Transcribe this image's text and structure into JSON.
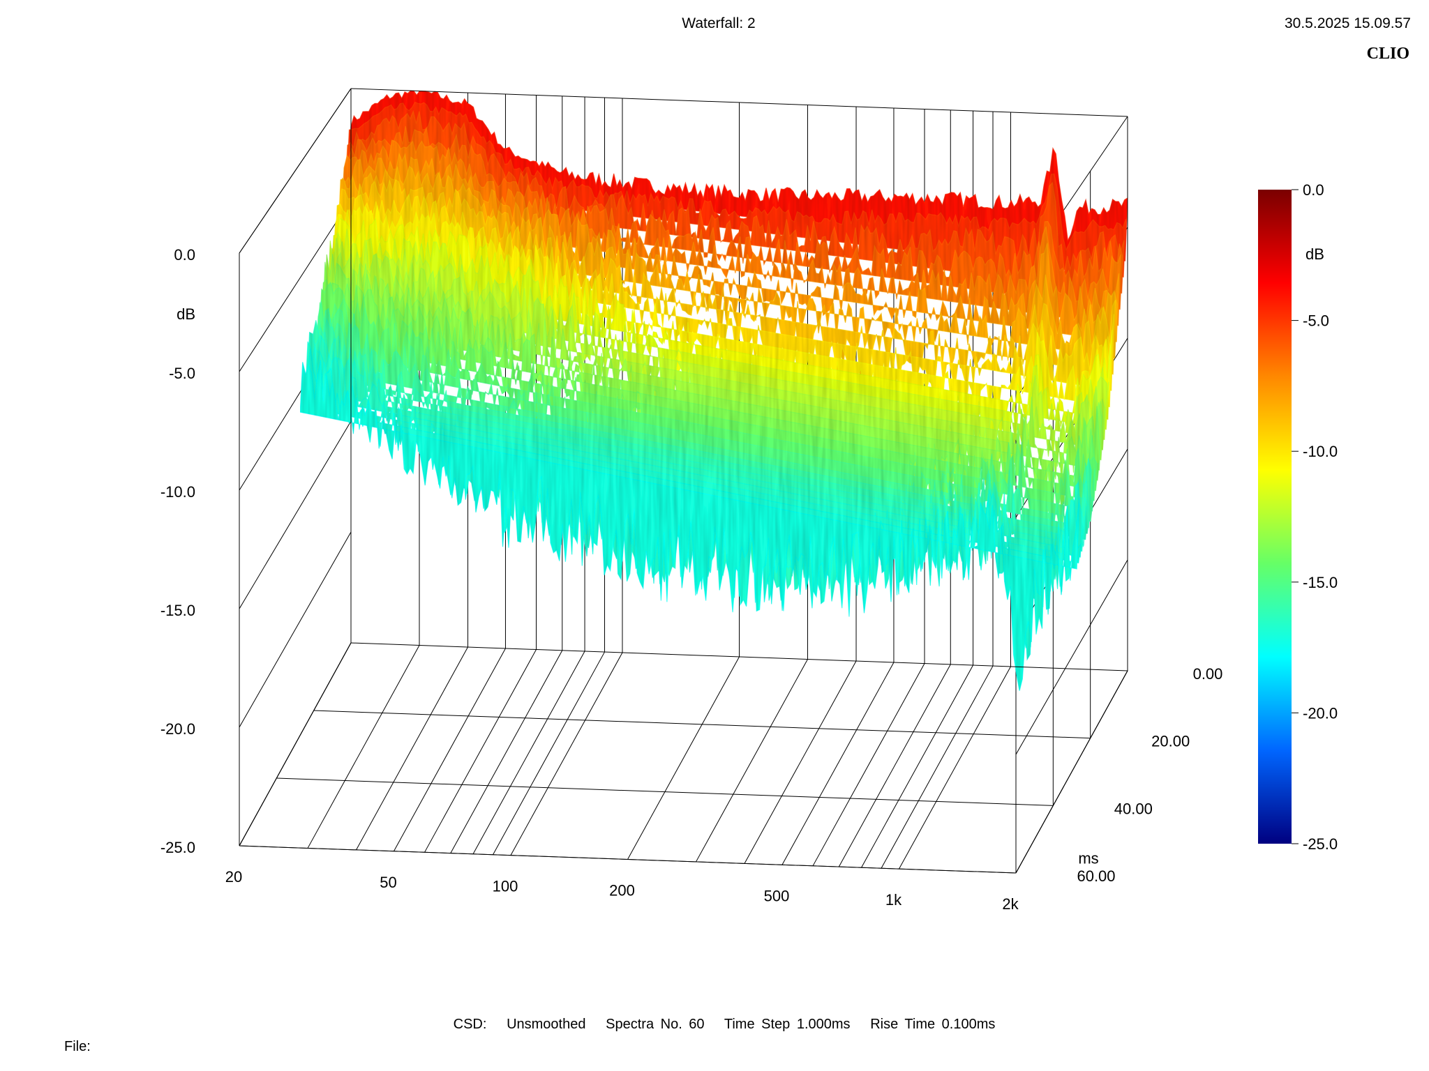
{
  "header": {
    "title": "Waterfall: 2",
    "datetime": "30.5.2025 15.09.57",
    "brand": "CLIO"
  },
  "footer": {
    "info": "CSD:   Unsmoothed   Spectra No. 60   Time Step 1.000ms   Rise Time 0.100ms",
    "file_label": "File:"
  },
  "chart_data": {
    "type": "waterfall",
    "title": "Waterfall: 2",
    "xlabel": "",
    "ylabel": "dB",
    "zlabel": "ms",
    "x_scale": "log",
    "xlim": [
      20,
      2000
    ],
    "x_ticks": [
      20,
      50,
      100,
      200,
      500,
      1000,
      2000
    ],
    "x_tick_labels": [
      "20",
      "50",
      "100",
      "200",
      "500",
      "1k",
      "2k"
    ],
    "ylim": [
      -25,
      0
    ],
    "y_ticks": [
      0,
      -5,
      -10,
      -15,
      -20,
      -25
    ],
    "y_tick_labels": [
      "0.0",
      "-5.0",
      "-10.0",
      "-15.0",
      "-20.0",
      "-25.0"
    ],
    "time_ticks": [
      0,
      20,
      40,
      60
    ],
    "time_tick_labels": [
      "0.00",
      "20.00",
      "40.00",
      "60.00"
    ],
    "time_step_ms": 1.0,
    "spectra_count": 60,
    "grid": true,
    "colorbar": {
      "label": "dB",
      "ticks": [
        0,
        -5,
        -10,
        -15,
        -20,
        -25
      ],
      "tick_labels": [
        "0.0",
        "-5.0",
        "-10.0",
        "-15.0",
        "-20.0",
        "-25.0"
      ],
      "colors": [
        "#7a0000",
        "#ff0000",
        "#ff8800",
        "#ffff00",
        "#66ff66",
        "#00ffff",
        "#0066ff",
        "#000080"
      ]
    },
    "series": [
      {
        "name": "",
        "time_ms": 0,
        "x": [
          20,
          25,
          30,
          40,
          50,
          70,
          100,
          150,
          200,
          300,
          500,
          700,
          1000,
          1200,
          1300,
          1400,
          1500,
          2000
        ],
        "y": [
          -1.5,
          -0.3,
          0.0,
          -0.5,
          -2.5,
          -3.5,
          -3.8,
          -4.0,
          -4.1,
          -4.1,
          -4.0,
          -4.0,
          -4.1,
          -3.9,
          -1.5,
          -5.5,
          -4.2,
          -4.0
        ]
      },
      {
        "name": "",
        "time_ms": 10,
        "x": [
          20,
          25,
          30,
          40,
          50,
          70,
          100,
          150,
          200,
          300,
          500,
          700,
          1000,
          1200,
          1300,
          1400,
          1500,
          2000
        ],
        "y": [
          -5.5,
          -5.6,
          -5.7,
          -6.0,
          -6.5,
          -7.5,
          -9.0,
          -10.5,
          -11.5,
          -12.5,
          -13.0,
          -13.2,
          -13.0,
          -12.5,
          -10.5,
          -12.0,
          -12.5,
          -10.5
        ]
      },
      {
        "name": "",
        "time_ms": 20,
        "x": [
          20,
          25,
          30,
          40,
          50,
          70,
          100,
          150,
          200,
          300,
          500,
          700,
          1000,
          1200,
          1300,
          1400,
          1500,
          2000
        ],
        "y": [
          -8.5,
          -9.5,
          -10.5,
          -11.5,
          -12.5,
          -13.5,
          -14.5,
          -15.5,
          -16.0,
          -16.5,
          -16.5,
          -16.0,
          -15.5,
          -15.0,
          -15.5,
          -19.0,
          -17.5,
          -14.0
        ]
      }
    ]
  }
}
